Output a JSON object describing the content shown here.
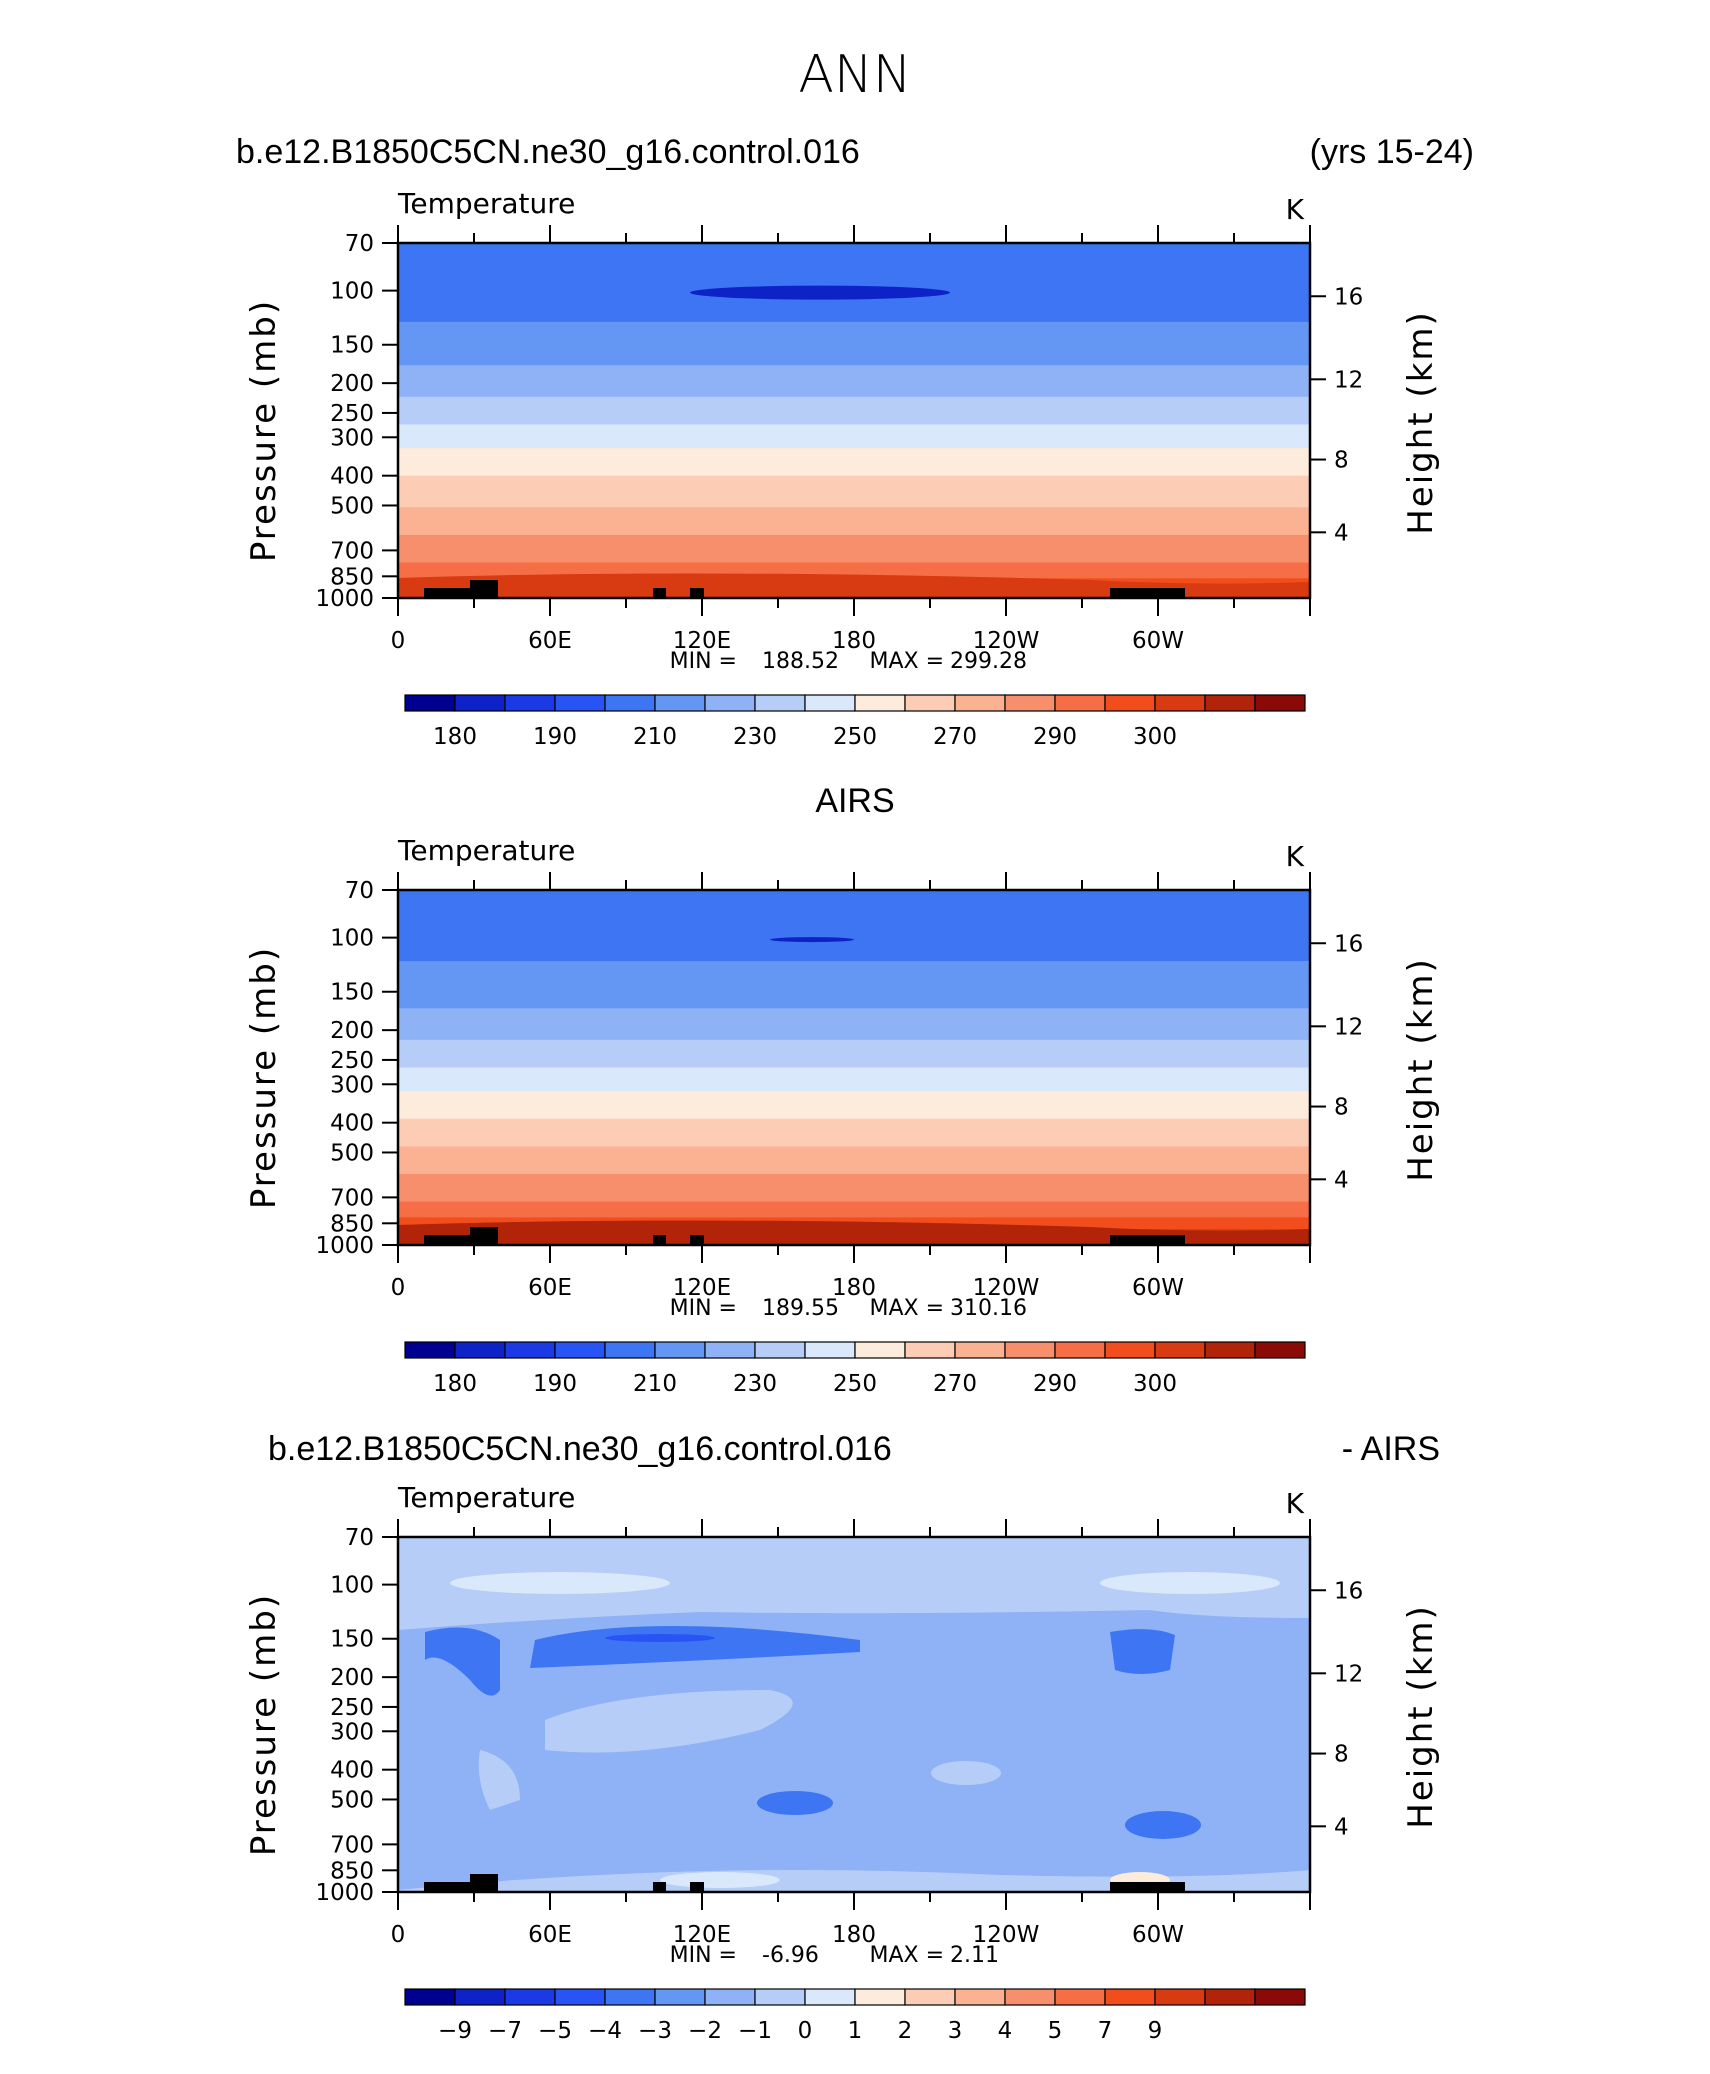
{
  "page": {
    "main_title": "ANN"
  },
  "colorbar_colors": [
    "#000090",
    "#0d23c8",
    "#1b3ae5",
    "#2954f5",
    "#3d75f3",
    "#6497f4",
    "#8fb2f6",
    "#b6cdf8",
    "#d9e8fb",
    "#fdebdb",
    "#fccdb4",
    "#fbb292",
    "#f88f6c",
    "#f56e46",
    "#f24e1d",
    "#d83a12",
    "#b22409",
    "#890a06"
  ],
  "panels": [
    {
      "id": "model",
      "header_left": "b.e12.B1850C5CN.ne30_g16.control.016",
      "header_right": "(yrs 15-24)",
      "header_center": "",
      "variable": "Temperature",
      "units": "K",
      "min_label": "MIN = ",
      "min_value": "188.52",
      "max_label": "MAX = ",
      "max_value": "299.28",
      "cb_labels": [
        "180",
        "190",
        "210",
        "230",
        "250",
        "270",
        "290",
        "300"
      ]
    },
    {
      "id": "obs",
      "header_left": "",
      "header_right": "",
      "header_center": "AIRS",
      "variable": "Temperature",
      "units": "K",
      "min_label": "MIN = ",
      "min_value": "189.55",
      "max_label": "MAX = ",
      "max_value": "310.16",
      "cb_labels": [
        "180",
        "190",
        "210",
        "230",
        "250",
        "270",
        "290",
        "300"
      ]
    },
    {
      "id": "diff",
      "header_left": "b.e12.B1850C5CN.ne30_g16.control.016",
      "header_right": "- AIRS",
      "header_center": "",
      "variable": "Temperature",
      "units": "K",
      "min_label": "MIN = ",
      "min_value": "-6.96",
      "max_label": "MAX = ",
      "max_value": "2.11",
      "cb_labels": [
        "-9",
        "-7",
        "-5",
        "-4",
        "-3",
        "-2",
        "-1",
        "0",
        "1",
        "2",
        "3",
        "4",
        "5",
        "7",
        "9"
      ]
    }
  ],
  "chart_data": [
    {
      "type": "heatmap",
      "title": "b.e12.B1850C5CN.ne30_g16.control.016 (yrs 15-24)",
      "variable": "Temperature",
      "units": "K",
      "xlabel": "",
      "ylabel": "Pressure (mb)",
      "y2label": "Height (km)",
      "x_ticks": [
        "0",
        "60E",
        "120E",
        "180",
        "120W",
        "60W"
      ],
      "y_ticks": [
        70,
        100,
        150,
        200,
        250,
        300,
        400,
        500,
        700,
        850,
        1000
      ],
      "y2_ticks": [
        4,
        8,
        12,
        16
      ],
      "y_scale": "log",
      "ylim": [
        1000,
        70
      ],
      "min": 188.52,
      "max": 299.28,
      "colorbar_labels": [
        180,
        190,
        210,
        230,
        250,
        270,
        290,
        300
      ],
      "profile": [
        {
          "pressure": 70,
          "value": 196
        },
        {
          "pressure": 100,
          "value": 194
        },
        {
          "pressure": 150,
          "value": 205
        },
        {
          "pressure": 200,
          "value": 215
        },
        {
          "pressure": 250,
          "value": 226
        },
        {
          "pressure": 300,
          "value": 236
        },
        {
          "pressure": 400,
          "value": 250
        },
        {
          "pressure": 500,
          "value": 260
        },
        {
          "pressure": 700,
          "value": 276
        },
        {
          "pressure": 850,
          "value": 284
        },
        {
          "pressure": 1000,
          "value": 292
        }
      ]
    },
    {
      "type": "heatmap",
      "title": "AIRS",
      "variable": "Temperature",
      "units": "K",
      "xlabel": "",
      "ylabel": "Pressure (mb)",
      "y2label": "Height (km)",
      "x_ticks": [
        "0",
        "60E",
        "120E",
        "180",
        "120W",
        "60W"
      ],
      "y_ticks": [
        70,
        100,
        150,
        200,
        250,
        300,
        400,
        500,
        700,
        850,
        1000
      ],
      "y2_ticks": [
        4,
        8,
        12,
        16
      ],
      "y_scale": "log",
      "ylim": [
        1000,
        70
      ],
      "min": 189.55,
      "max": 310.16,
      "colorbar_labels": [
        180,
        190,
        210,
        230,
        250,
        270,
        290,
        300
      ],
      "profile": [
        {
          "pressure": 70,
          "value": 196
        },
        {
          "pressure": 100,
          "value": 195
        },
        {
          "pressure": 150,
          "value": 206
        },
        {
          "pressure": 200,
          "value": 216
        },
        {
          "pressure": 250,
          "value": 227
        },
        {
          "pressure": 300,
          "value": 237
        },
        {
          "pressure": 400,
          "value": 252
        },
        {
          "pressure": 500,
          "value": 262
        },
        {
          "pressure": 700,
          "value": 278
        },
        {
          "pressure": 850,
          "value": 287
        },
        {
          "pressure": 1000,
          "value": 296
        }
      ]
    },
    {
      "type": "heatmap",
      "title": "b.e12.B1850C5CN.ne30_g16.control.016 - AIRS",
      "variable": "Temperature",
      "units": "K",
      "xlabel": "",
      "ylabel": "Pressure (mb)",
      "y2label": "Height (km)",
      "x_ticks": [
        "0",
        "60E",
        "120E",
        "180",
        "120W",
        "60W"
      ],
      "y_ticks": [
        70,
        100,
        150,
        200,
        250,
        300,
        400,
        500,
        700,
        850,
        1000
      ],
      "y2_ticks": [
        4,
        8,
        12,
        16
      ],
      "y_scale": "log",
      "ylim": [
        1000,
        70
      ],
      "min": -6.96,
      "max": 2.11,
      "colorbar_labels": [
        -9,
        -7,
        -5,
        -4,
        -3,
        -2,
        -1,
        0,
        1,
        2,
        3,
        4,
        5,
        7,
        9
      ]
    }
  ]
}
